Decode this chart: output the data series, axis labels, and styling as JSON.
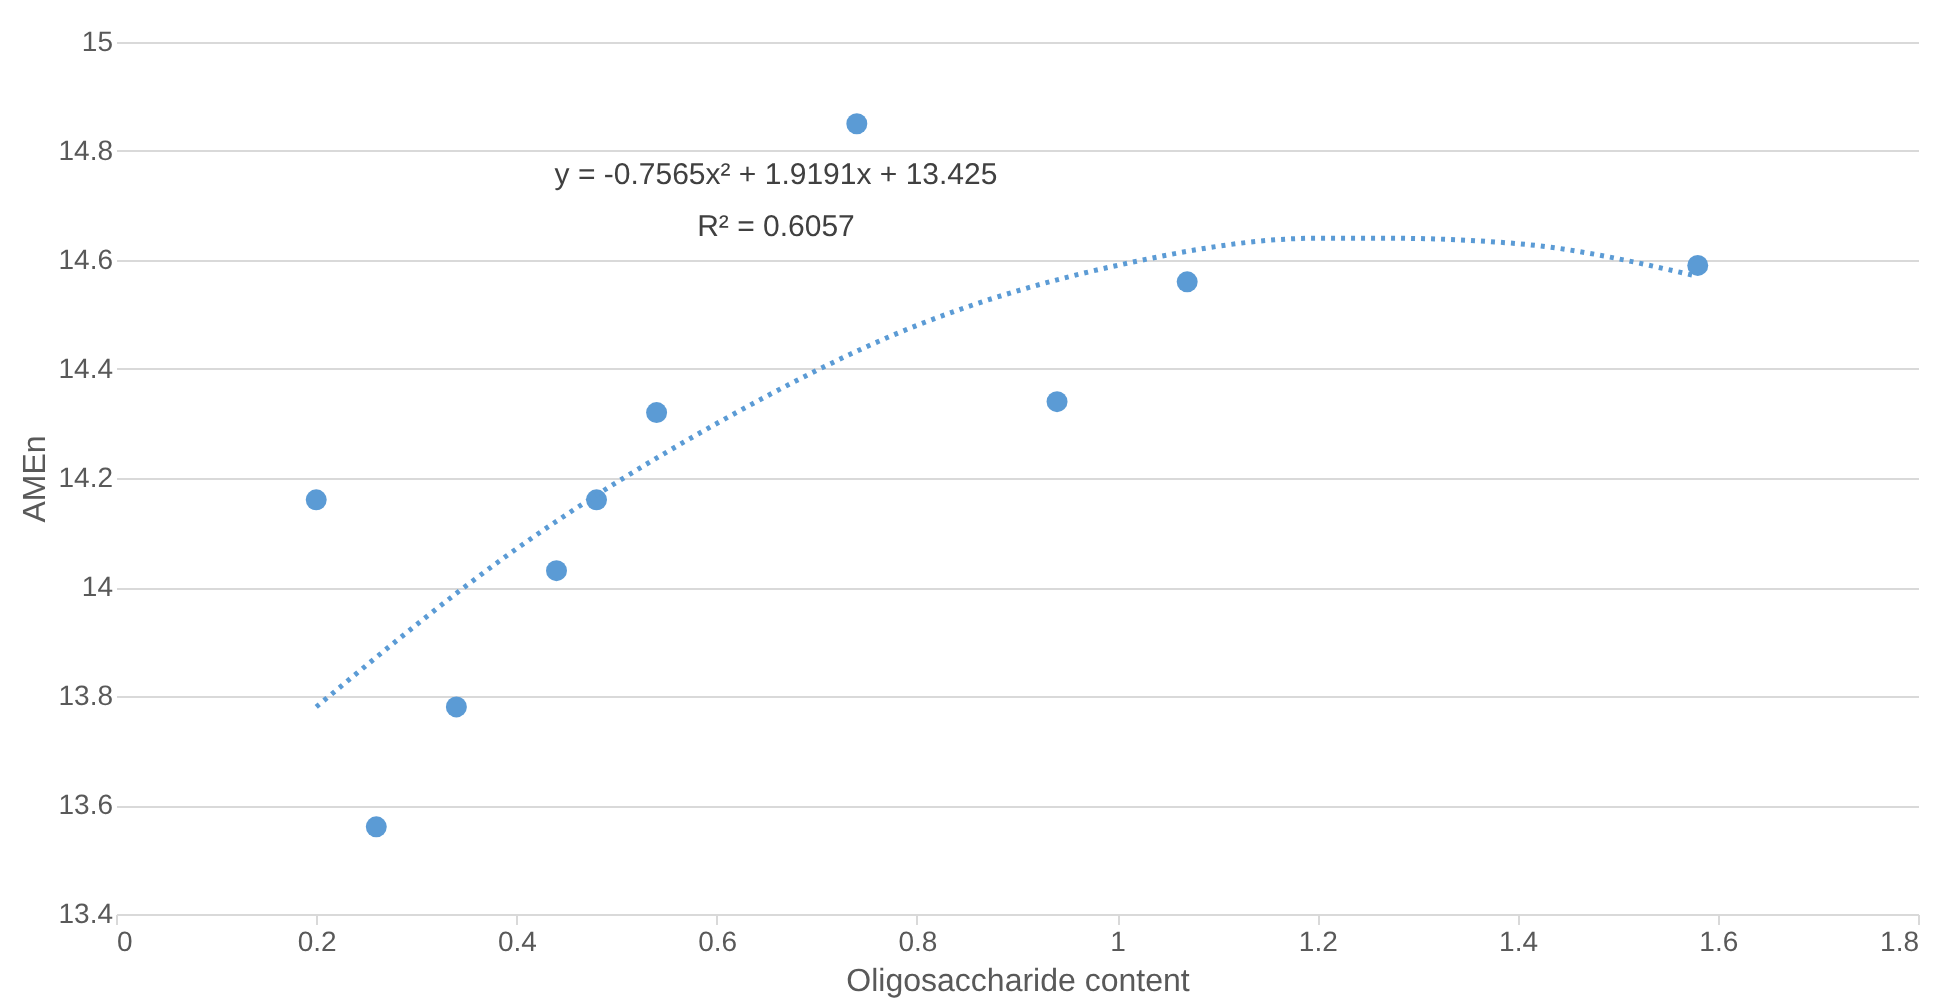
{
  "chart_data": {
    "type": "scatter",
    "xlabel": "Oligosaccharide content",
    "ylabel": "AMEn",
    "annotations": [
      "y = -0.7565x² + 1.9191x + 13.425",
      "R² = 0.6057"
    ],
    "series": [
      {
        "type": "scatter",
        "color": "#5b9bd5",
        "marker": "circle",
        "x": [
          0.2,
          0.26,
          0.34,
          0.44,
          0.48,
          0.54,
          0.74,
          0.94,
          1.07,
          1.58
        ],
        "values": [
          14.16,
          13.56,
          13.78,
          14.03,
          14.16,
          14.32,
          14.85,
          14.34,
          14.56,
          14.59
        ]
      },
      {
        "type": "line",
        "color": "#5b9bd5",
        "line_style": "dotted",
        "x": [
          0.2,
          0.4,
          0.6,
          0.8,
          1.0,
          1.2,
          1.27,
          1.4,
          1.58
        ],
        "values": [
          13.78,
          14.07,
          14.3,
          14.48,
          14.59,
          14.64,
          14.64,
          14.63,
          14.57
        ]
      }
    ],
    "xlim": [
      0,
      1.8
    ],
    "xticks": [
      0,
      0.2,
      0.4,
      0.6,
      0.8,
      1,
      1.2,
      1.4,
      1.6,
      1.8
    ],
    "ylim": [
      13.4,
      15
    ],
    "yticks": [
      13.4,
      13.6,
      13.8,
      14,
      14.2,
      14.4,
      14.6,
      14.8,
      15
    ],
    "grid": "y"
  }
}
